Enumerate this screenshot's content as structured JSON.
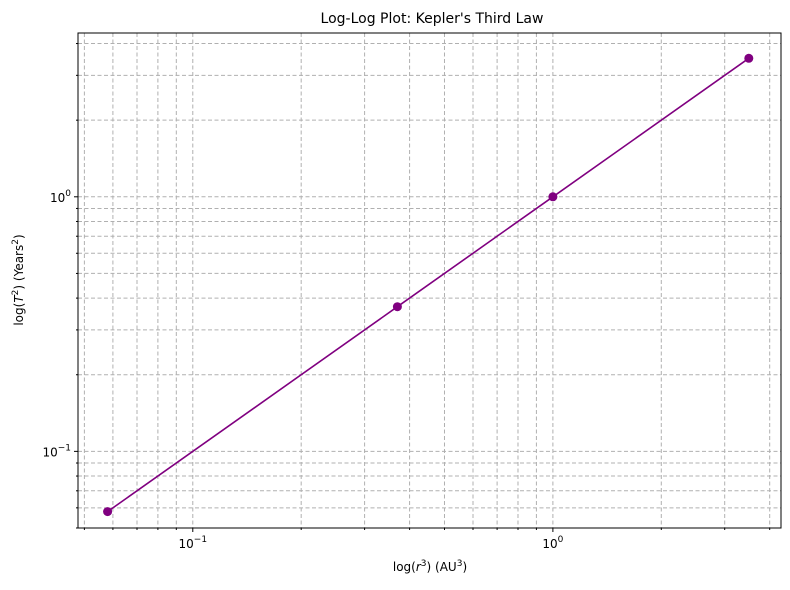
{
  "chart_data": {
    "type": "line",
    "title": "Log-Log Plot: Kepler's Third Law",
    "xlabel": {
      "prefix": "log(",
      "var": "r",
      "sup": "3",
      "mid": ") (AU",
      "sup2": "3",
      "suffix": ")"
    },
    "ylabel": {
      "prefix": "log(",
      "var": "T",
      "sup": "2",
      "mid": ") (Years",
      "sup2": "2",
      "suffix": ")"
    },
    "x_scale": "log",
    "y_scale": "log",
    "xlim": [
      0.048,
      4.3
    ],
    "ylim": [
      0.05,
      4.4
    ],
    "grid": true,
    "x_ticks": [
      {
        "value": 0.1,
        "base": "10",
        "exp": "−1"
      },
      {
        "value": 1,
        "base": "10",
        "exp": "0"
      }
    ],
    "y_ticks": [
      {
        "value": 0.1,
        "base": "10",
        "exp": "−1"
      },
      {
        "value": 1,
        "base": "10",
        "exp": "0"
      }
    ],
    "series": [
      {
        "color": "#800080",
        "marker": "circle",
        "x": [
          0.058,
          0.37,
          1.0,
          3.5
        ],
        "y": [
          0.058,
          0.37,
          1.0,
          3.5
        ]
      }
    ]
  }
}
